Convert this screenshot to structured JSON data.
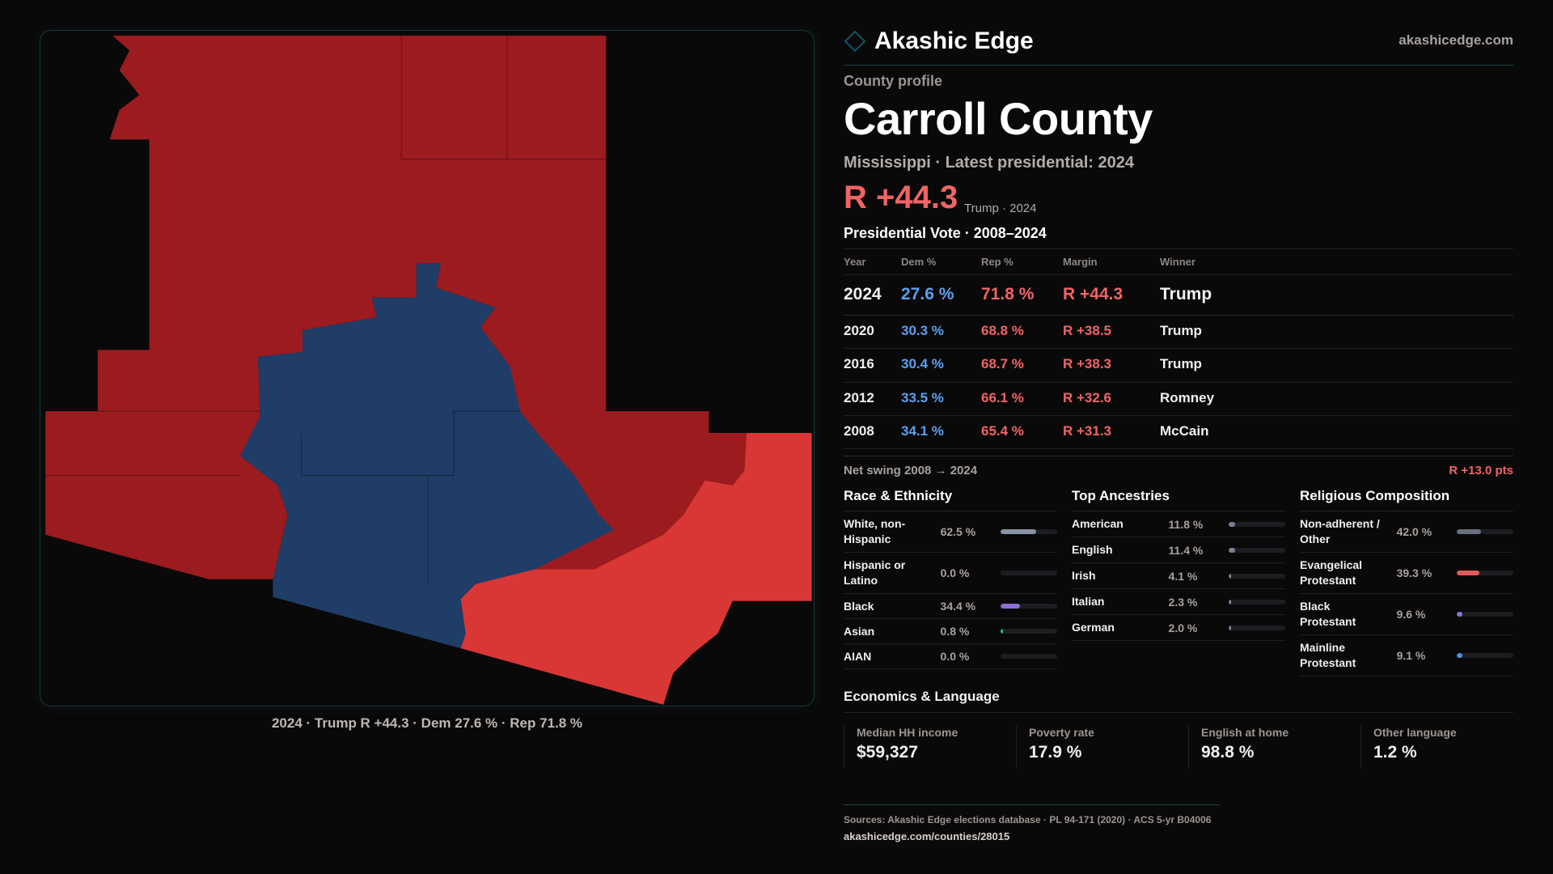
{
  "brand": {
    "name": "Akashic Edge",
    "site": "akashicedge.com",
    "logo_icon": "diamond-outline-icon"
  },
  "profile": {
    "kicker": "County profile",
    "title": "Carroll County",
    "subtitle": "Mississippi · Latest presidential: 2024",
    "margin": "R +44.3",
    "margin_sub": "Trump · 2024"
  },
  "map": {
    "caption": "2024 · Trump R +44.3 · Dem 27.6 % · Rep 71.8 %",
    "colors": {
      "rep_strong": "#9c1b1f",
      "rep_light": "#d93636",
      "dem": "#1f3d66",
      "background": "#0a0909"
    }
  },
  "vote": {
    "title": "Presidential Vote · 2008–2024",
    "headers": [
      "Year",
      "Dem %",
      "Rep %",
      "Margin",
      "Winner"
    ],
    "rows": [
      {
        "year": "2024",
        "dem": "27.6 %",
        "rep": "71.8 %",
        "margin": "R +44.3",
        "winner": "Trump"
      },
      {
        "year": "2020",
        "dem": "30.3 %",
        "rep": "68.8 %",
        "margin": "R +38.5",
        "winner": "Trump"
      },
      {
        "year": "2016",
        "dem": "30.4 %",
        "rep": "68.7 %",
        "margin": "R +38.3",
        "winner": "Trump"
      },
      {
        "year": "2012",
        "dem": "33.5 %",
        "rep": "66.1 %",
        "margin": "R +32.6",
        "winner": "Romney"
      },
      {
        "year": "2008",
        "dem": "34.1 %",
        "rep": "65.4 %",
        "margin": "R +31.3",
        "winner": "McCain"
      }
    ],
    "swing_label": "Net swing 2008 → 2024",
    "swing_value": "R +13.0 pts"
  },
  "sections": [
    {
      "title": "Race & Ethnicity",
      "items": [
        {
          "label": "White, non-Hispanic",
          "pct": "62.5 %",
          "value": 62.5,
          "color": "#8a93a6"
        },
        {
          "label": "Hispanic or Latino",
          "pct": "0.0 %",
          "value": 0,
          "color": "#8a93a6"
        },
        {
          "label": "Black",
          "pct": "34.4 %",
          "value": 34.4,
          "color": "#8b6fd6"
        },
        {
          "label": "Asian",
          "pct": "0.8 %",
          "value": 0.8,
          "color": "#2fb38a"
        },
        {
          "label": "AIAN",
          "pct": "0.0 %",
          "value": 0,
          "color": "#8a93a6"
        }
      ]
    },
    {
      "title": "Top Ancestries",
      "items": [
        {
          "label": "American",
          "pct": "11.8 %",
          "value": 11.8,
          "color": "#7a8296"
        },
        {
          "label": "English",
          "pct": "11.4 %",
          "value": 11.4,
          "color": "#7a8296"
        },
        {
          "label": "Irish",
          "pct": "4.1 %",
          "value": 4.1,
          "color": "#7a8296"
        },
        {
          "label": "Italian",
          "pct": "2.3 %",
          "value": 2.3,
          "color": "#7a8296"
        },
        {
          "label": "German",
          "pct": "2.0 %",
          "value": 2.0,
          "color": "#7a8296"
        }
      ]
    },
    {
      "title": "Religious Composition",
      "items": [
        {
          "label": "Non-adherent / Other",
          "pct": "42.0 %",
          "value": 42.0,
          "color": "#6b7080"
        },
        {
          "label": "Evangelical Protestant",
          "pct": "39.3 %",
          "value": 39.3,
          "color": "#e05a5a"
        },
        {
          "label": "Black Protestant",
          "pct": "9.6 %",
          "value": 9.6,
          "color": "#8b6fd6"
        },
        {
          "label": "Mainline Protestant",
          "pct": "9.1 %",
          "value": 9.1,
          "color": "#4a8fe0"
        }
      ]
    }
  ],
  "economics": {
    "title": "Economics & Language",
    "stats": [
      {
        "label": "Median HH income",
        "value": "$59,327"
      },
      {
        "label": "Poverty rate",
        "value": "17.9 %"
      },
      {
        "label": "English at home",
        "value": "98.8 %"
      },
      {
        "label": "Other language",
        "value": "1.2 %"
      }
    ]
  },
  "footer": {
    "sources": "Sources: Akashic Edge elections database · PL 94-171 (2020) · ACS 5-yr B04006",
    "url": "akashicedge.com/counties/28015"
  }
}
